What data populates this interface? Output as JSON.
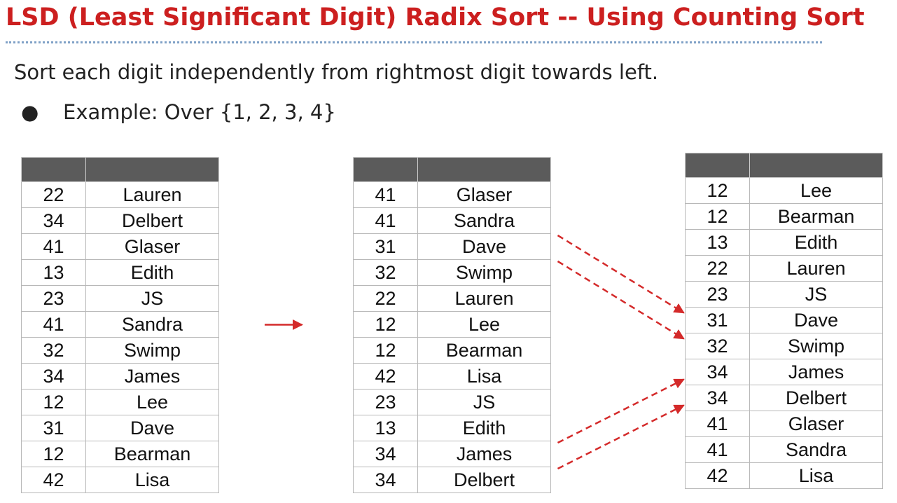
{
  "slide": {
    "title": "LSD (Least Significant Digit) Radix Sort -- Using Counting Sort",
    "subtitle": "Sort each digit independently from rightmost digit towards left.",
    "bullet": "Example: Over {1, 2, 3, 4}",
    "bullet_glyph": "●"
  },
  "colors": {
    "title": "#cc1f1f",
    "arrow": "#d42a2a",
    "table_header": "#5b5b5b"
  },
  "tables": {
    "original": {
      "rows": [
        {
          "key": "22",
          "name": "Lauren"
        },
        {
          "key": "34",
          "name": "Delbert"
        },
        {
          "key": "41",
          "name": "Glaser"
        },
        {
          "key": "13",
          "name": "Edith"
        },
        {
          "key": "23",
          "name": "JS"
        },
        {
          "key": "41",
          "name": "Sandra"
        },
        {
          "key": "32",
          "name": "Swimp"
        },
        {
          "key": "34",
          "name": "James"
        },
        {
          "key": "12",
          "name": "Lee"
        },
        {
          "key": "31",
          "name": "Dave"
        },
        {
          "key": "12",
          "name": "Bearman"
        },
        {
          "key": "42",
          "name": "Lisa"
        }
      ]
    },
    "pass1": {
      "rows": [
        {
          "key": "41",
          "name": "Glaser"
        },
        {
          "key": "41",
          "name": "Sandra"
        },
        {
          "key": "31",
          "name": "Dave"
        },
        {
          "key": "32",
          "name": "Swimp"
        },
        {
          "key": "22",
          "name": "Lauren"
        },
        {
          "key": "12",
          "name": "Lee"
        },
        {
          "key": "12",
          "name": "Bearman"
        },
        {
          "key": "42",
          "name": "Lisa"
        },
        {
          "key": "23",
          "name": "JS"
        },
        {
          "key": "13",
          "name": "Edith"
        },
        {
          "key": "34",
          "name": "James"
        },
        {
          "key": "34",
          "name": "Delbert"
        }
      ]
    },
    "pass2": {
      "rows": [
        {
          "key": "12",
          "name": "Lee"
        },
        {
          "key": "12",
          "name": "Bearman"
        },
        {
          "key": "13",
          "name": "Edith"
        },
        {
          "key": "22",
          "name": "Lauren"
        },
        {
          "key": "23",
          "name": "JS"
        },
        {
          "key": "31",
          "name": "Dave"
        },
        {
          "key": "32",
          "name": "Swimp"
        },
        {
          "key": "34",
          "name": "James"
        },
        {
          "key": "34",
          "name": "Delbert"
        },
        {
          "key": "41",
          "name": "Glaser"
        },
        {
          "key": "41",
          "name": "Sandra"
        },
        {
          "key": "42",
          "name": "Lisa"
        }
      ]
    }
  },
  "arrows": {
    "stage_arrow": {
      "from_table": "original",
      "to_table": "pass1",
      "style": "solid"
    },
    "moves": [
      {
        "from_table": "pass1",
        "from_row": 2,
        "to_table": "pass2",
        "to_row": 5,
        "style": "dashed"
      },
      {
        "from_table": "pass1",
        "from_row": 3,
        "to_table": "pass2",
        "to_row": 6,
        "style": "dashed"
      },
      {
        "from_table": "pass1",
        "from_row": 10,
        "to_table": "pass2",
        "to_row": 7,
        "style": "dashed"
      },
      {
        "from_table": "pass1",
        "from_row": 11,
        "to_table": "pass2",
        "to_row": 8,
        "style": "dashed"
      }
    ]
  }
}
